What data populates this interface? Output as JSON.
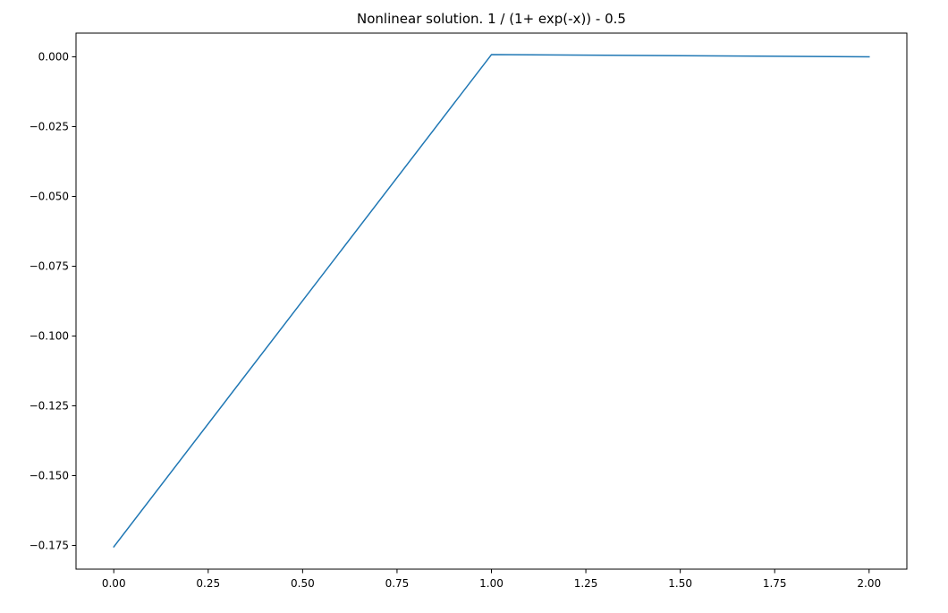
{
  "chart_data": {
    "type": "line",
    "title": "Nonlinear solution. 1 / (1+ exp(-x)) - 0.5",
    "xlabel": "",
    "ylabel": "",
    "xlim": [
      -0.1,
      2.1
    ],
    "ylim": [
      -0.1835,
      0.0085
    ],
    "grid": false,
    "legend": "none",
    "x_ticks": [
      {
        "value": 0.0,
        "label": "0.00"
      },
      {
        "value": 0.25,
        "label": "0.25"
      },
      {
        "value": 0.5,
        "label": "0.50"
      },
      {
        "value": 0.75,
        "label": "0.75"
      },
      {
        "value": 1.0,
        "label": "1.00"
      },
      {
        "value": 1.25,
        "label": "1.25"
      },
      {
        "value": 1.5,
        "label": "1.50"
      },
      {
        "value": 1.75,
        "label": "1.75"
      },
      {
        "value": 2.0,
        "label": "2.00"
      }
    ],
    "y_ticks": [
      {
        "value": 0.0,
        "label": "0.000"
      },
      {
        "value": -0.025,
        "label": "−0.025"
      },
      {
        "value": -0.05,
        "label": "−0.050"
      },
      {
        "value": -0.075,
        "label": "−0.075"
      },
      {
        "value": -0.1,
        "label": "−0.100"
      },
      {
        "value": -0.125,
        "label": "−0.125"
      },
      {
        "value": -0.15,
        "label": "−0.150"
      },
      {
        "value": -0.175,
        "label": "−0.175"
      }
    ],
    "series": [
      {
        "color": "#1f77b4",
        "x": [
          0.0,
          1.0,
          2.0
        ],
        "y": [
          -0.1755,
          0.0008,
          0.0
        ]
      }
    ]
  }
}
